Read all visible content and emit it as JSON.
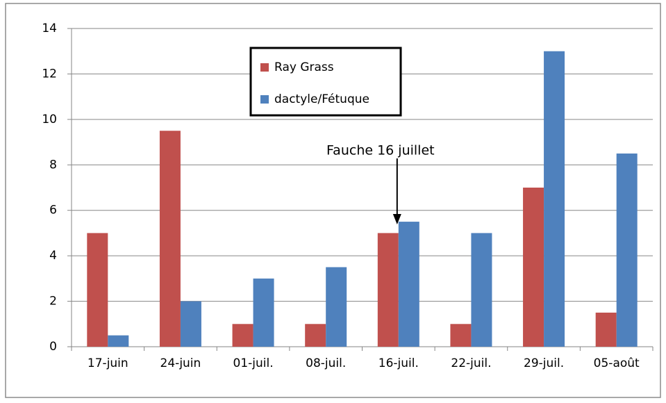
{
  "chart_data": {
    "type": "bar",
    "categories": [
      "17-juin",
      "24-juin",
      "01-juil.",
      "08-juil.",
      "16-juil.",
      "22-juil.",
      "29-juil.",
      "05-août"
    ],
    "series": [
      {
        "name": "Ray Grass",
        "color": "#c0504d",
        "values": [
          5,
          9.5,
          1,
          1,
          5,
          1,
          7,
          1.5
        ]
      },
      {
        "name": "dactyle/Fétuque",
        "color": "#4f81bd",
        "values": [
          0.5,
          2,
          3,
          3.5,
          5.5,
          5,
          13,
          8.5
        ]
      }
    ],
    "ylim": [
      0,
      14
    ],
    "yticks": [
      0,
      2,
      4,
      6,
      8,
      10,
      12,
      14
    ],
    "grid": true,
    "annotation": "Fauche 16 juillet"
  }
}
